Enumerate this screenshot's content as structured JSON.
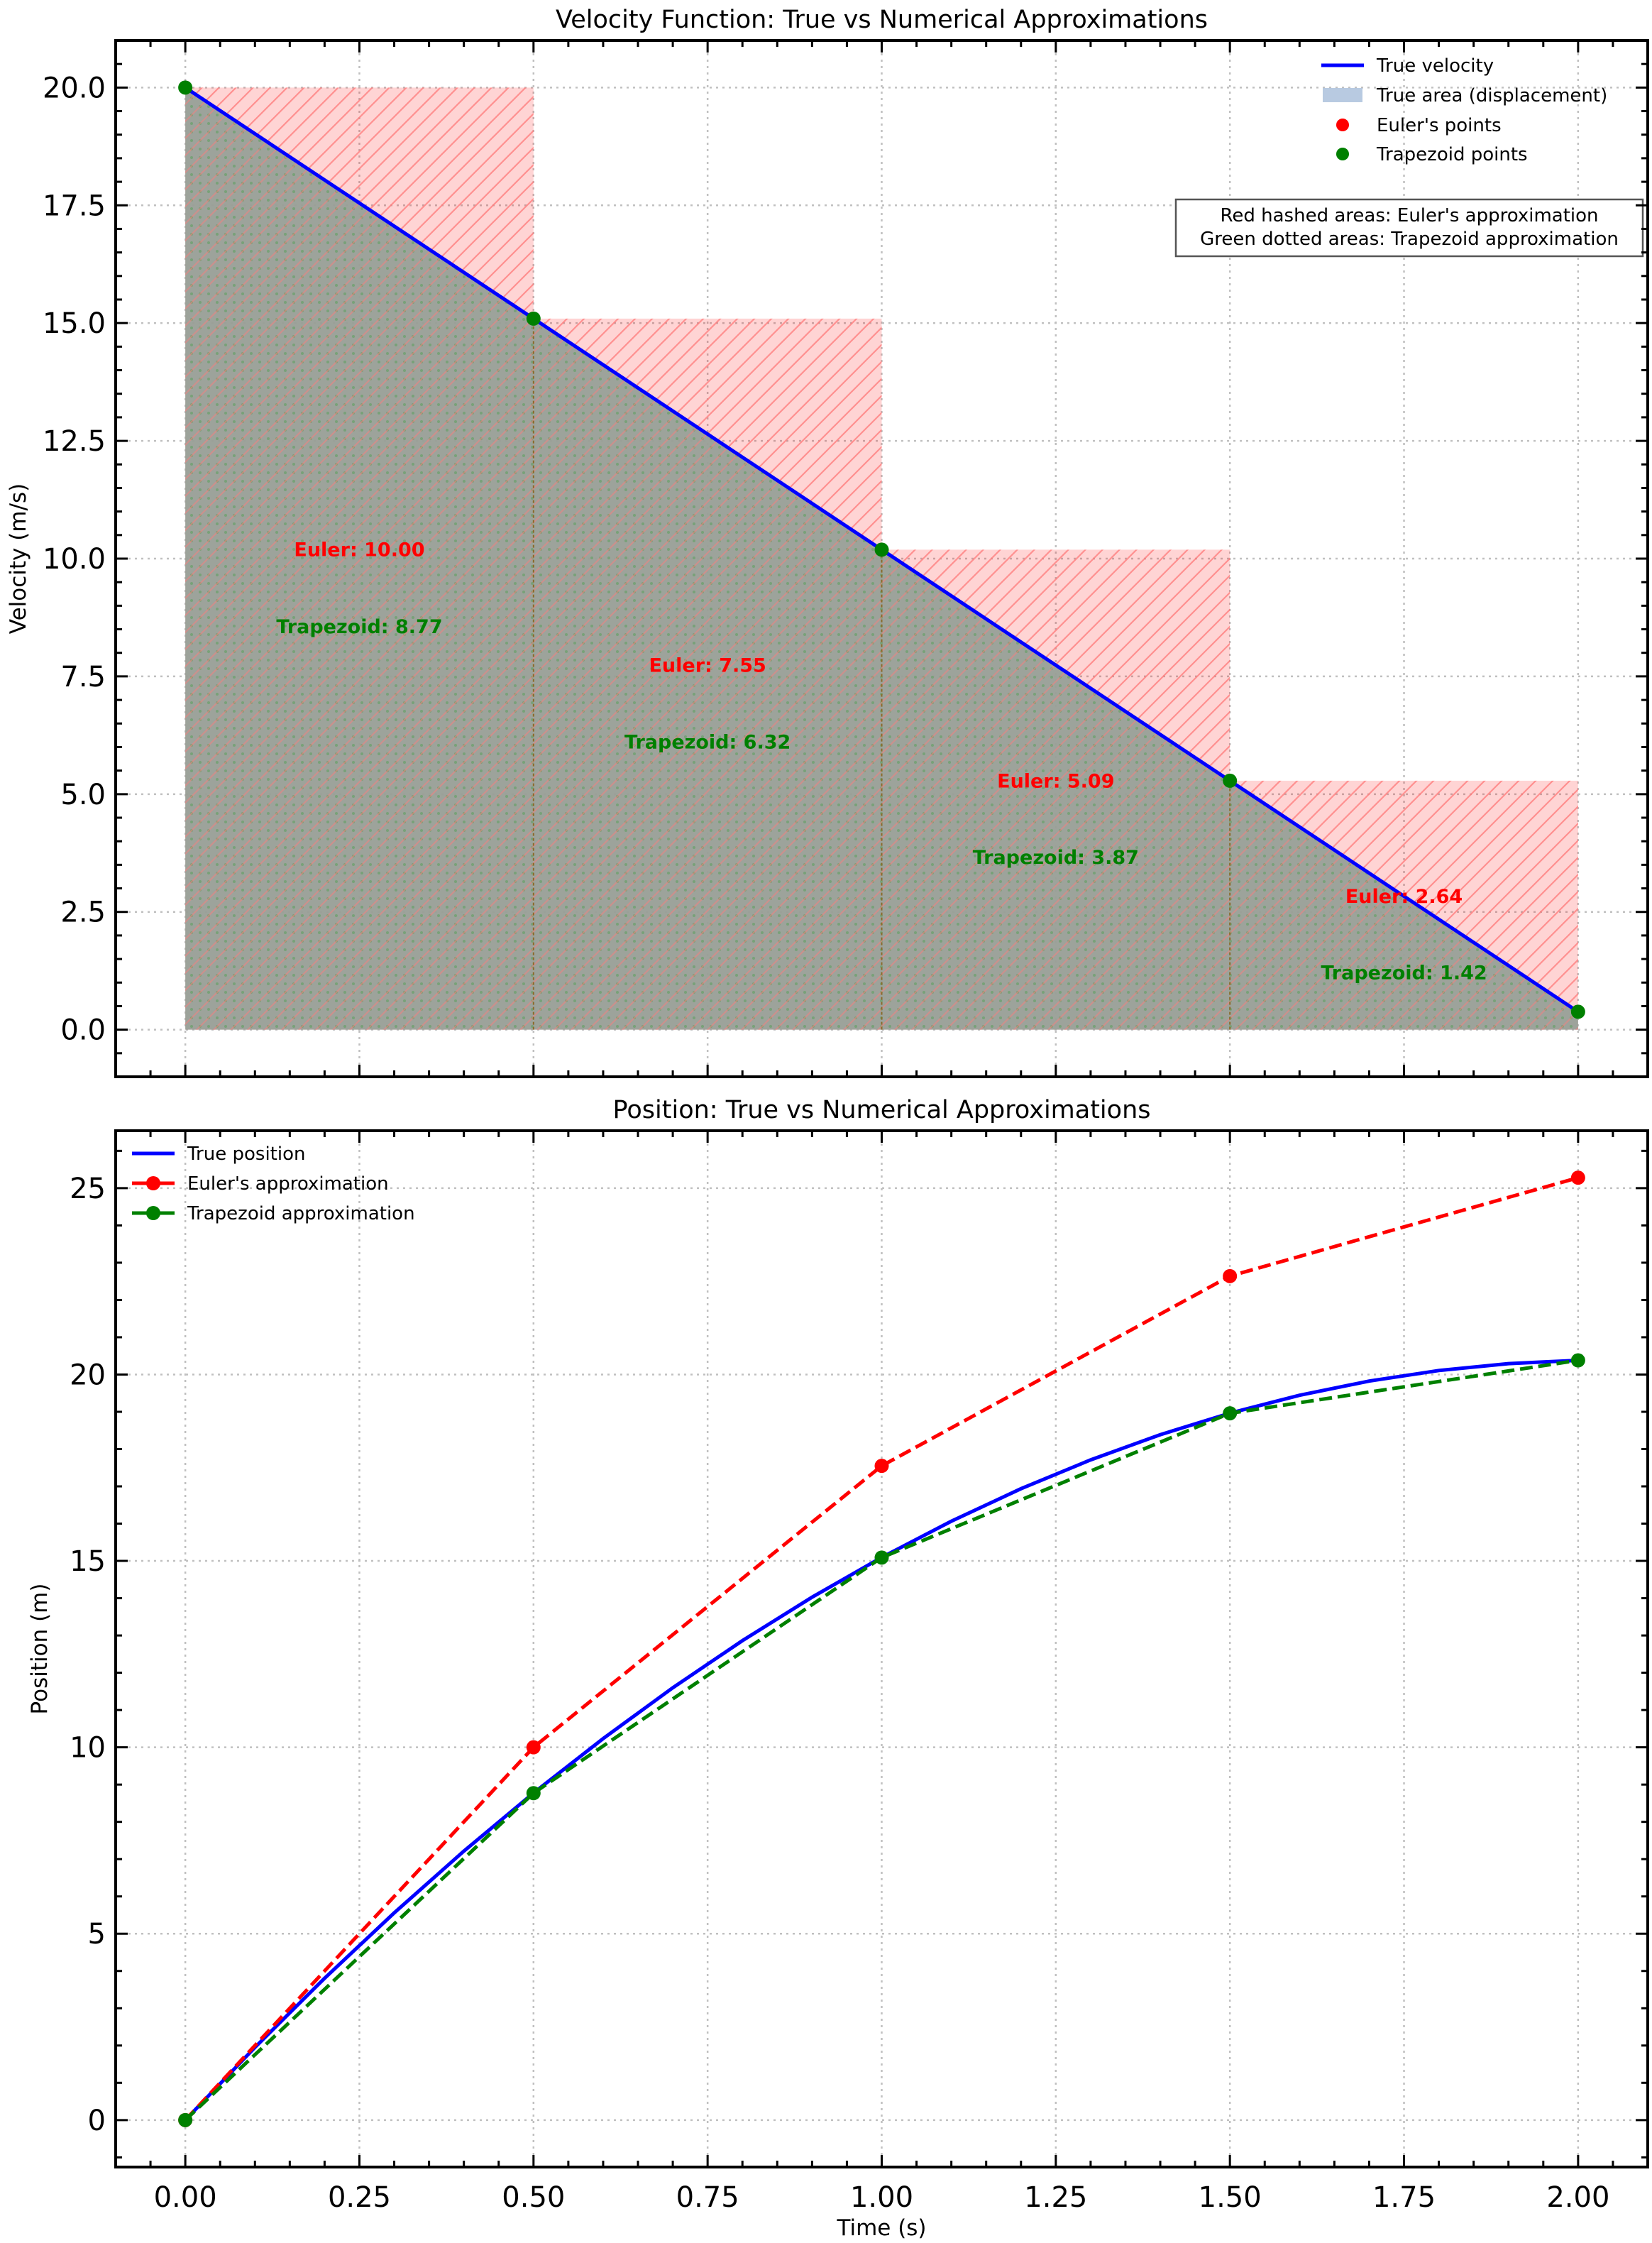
{
  "chart_data": [
    {
      "type": "line",
      "title": "Velocity Function: True vs Numerical Approximations",
      "xlabel": "",
      "ylabel": "Velocity (m/s)",
      "xlim": [
        -0.1,
        2.1
      ],
      "ylim": [
        -1,
        21
      ],
      "xticks": [
        0,
        0.25,
        0.5,
        0.75,
        1.0,
        1.25,
        1.5,
        1.75,
        2.0
      ],
      "yticks": [
        0,
        2.5,
        5,
        7.5,
        10,
        12.5,
        15,
        17.5,
        20
      ],
      "ytick_labels": [
        "0.0",
        "2.5",
        "5.0",
        "7.5",
        "10.0",
        "12.5",
        "15.0",
        "17.5",
        "20.0"
      ],
      "grid": true,
      "legend_placement": "upper-right",
      "x": [
        0,
        0.5,
        1.0,
        1.5,
        2.0
      ],
      "series": [
        {
          "name": "True velocity",
          "kind": "line",
          "color": "#0000ff",
          "values": [
            20.0,
            15.095,
            10.19,
            5.285,
            0.38
          ]
        },
        {
          "name": "True area (displacement)",
          "kind": "area",
          "color": "#b0c4de"
        },
        {
          "name": "Euler's points",
          "kind": "scatter",
          "color": "#ff0000",
          "values": [
            20.0,
            15.095,
            10.19,
            5.285
          ]
        },
        {
          "name": "Trapezoid points",
          "kind": "scatter",
          "color": "#008000",
          "values": [
            20.0,
            15.095,
            10.19,
            5.285,
            0.38
          ]
        }
      ],
      "euler_rect_color": "#ff0000",
      "trapezoid_area_color": "#008000",
      "interval_annotations": [
        {
          "euler": "Euler: 10.00",
          "trapezoid": "Trapezoid: 8.77",
          "euler_value": 10.0,
          "trapezoid_value": 8.77
        },
        {
          "euler": "Euler: 7.55",
          "trapezoid": "Trapezoid: 6.32",
          "euler_value": 7.55,
          "trapezoid_value": 6.32
        },
        {
          "euler": "Euler: 5.09",
          "trapezoid": "Trapezoid: 3.87",
          "euler_value": 5.09,
          "trapezoid_value": 3.87
        },
        {
          "euler": "Euler: 2.64",
          "trapezoid": "Trapezoid: 1.42",
          "euler_value": 2.64,
          "trapezoid_value": 1.42
        }
      ],
      "note_box": [
        "Red hashed areas: Euler's approximation",
        "Green dotted areas: Trapezoid approximation"
      ]
    },
    {
      "type": "line",
      "title": "Position: True vs Numerical Approximations",
      "xlabel": "Time (s)",
      "ylabel": "Position (m)",
      "xlim": [
        -0.1,
        2.1
      ],
      "ylim": [
        -1.26,
        26.54
      ],
      "xticks": [
        0,
        0.25,
        0.5,
        0.75,
        1.0,
        1.25,
        1.5,
        1.75,
        2.0
      ],
      "xtick_labels": [
        "0.00",
        "0.25",
        "0.50",
        "0.75",
        "1.00",
        "1.25",
        "1.50",
        "1.75",
        "2.00"
      ],
      "yticks": [
        0,
        5,
        10,
        15,
        20,
        25
      ],
      "ytick_labels": [
        "0",
        "5",
        "10",
        "15",
        "20",
        "25"
      ],
      "grid": true,
      "legend_placement": "upper-left",
      "series": [
        {
          "name": "True position",
          "kind": "line",
          "color": "#0000ff",
          "x": [
            0,
            0.1,
            0.2,
            0.3,
            0.4,
            0.5,
            0.6,
            0.7,
            0.8,
            0.9,
            1.0,
            1.1,
            1.2,
            1.3,
            1.4,
            1.5,
            1.6,
            1.7,
            1.8,
            1.9,
            2.0
          ],
          "values": [
            0,
            1.951,
            3.804,
            5.559,
            7.215,
            8.774,
            10.234,
            11.597,
            12.861,
            14.027,
            15.095,
            16.065,
            16.937,
            17.71,
            18.386,
            18.964,
            19.443,
            19.825,
            20.108,
            20.293,
            20.38
          ]
        },
        {
          "name": "Euler's approximation",
          "kind": "dashed-line-markers",
          "color": "#ff0000",
          "x": [
            0,
            0.5,
            1.0,
            1.5,
            2.0
          ],
          "values": [
            0,
            10.0,
            17.55,
            22.64,
            25.28
          ]
        },
        {
          "name": "Trapezoid approximation",
          "kind": "dashed-line-markers",
          "color": "#008000",
          "x": [
            0,
            0.5,
            1.0,
            1.5,
            2.0
          ],
          "values": [
            0,
            8.77,
            15.09,
            18.96,
            20.38
          ]
        }
      ]
    }
  ]
}
